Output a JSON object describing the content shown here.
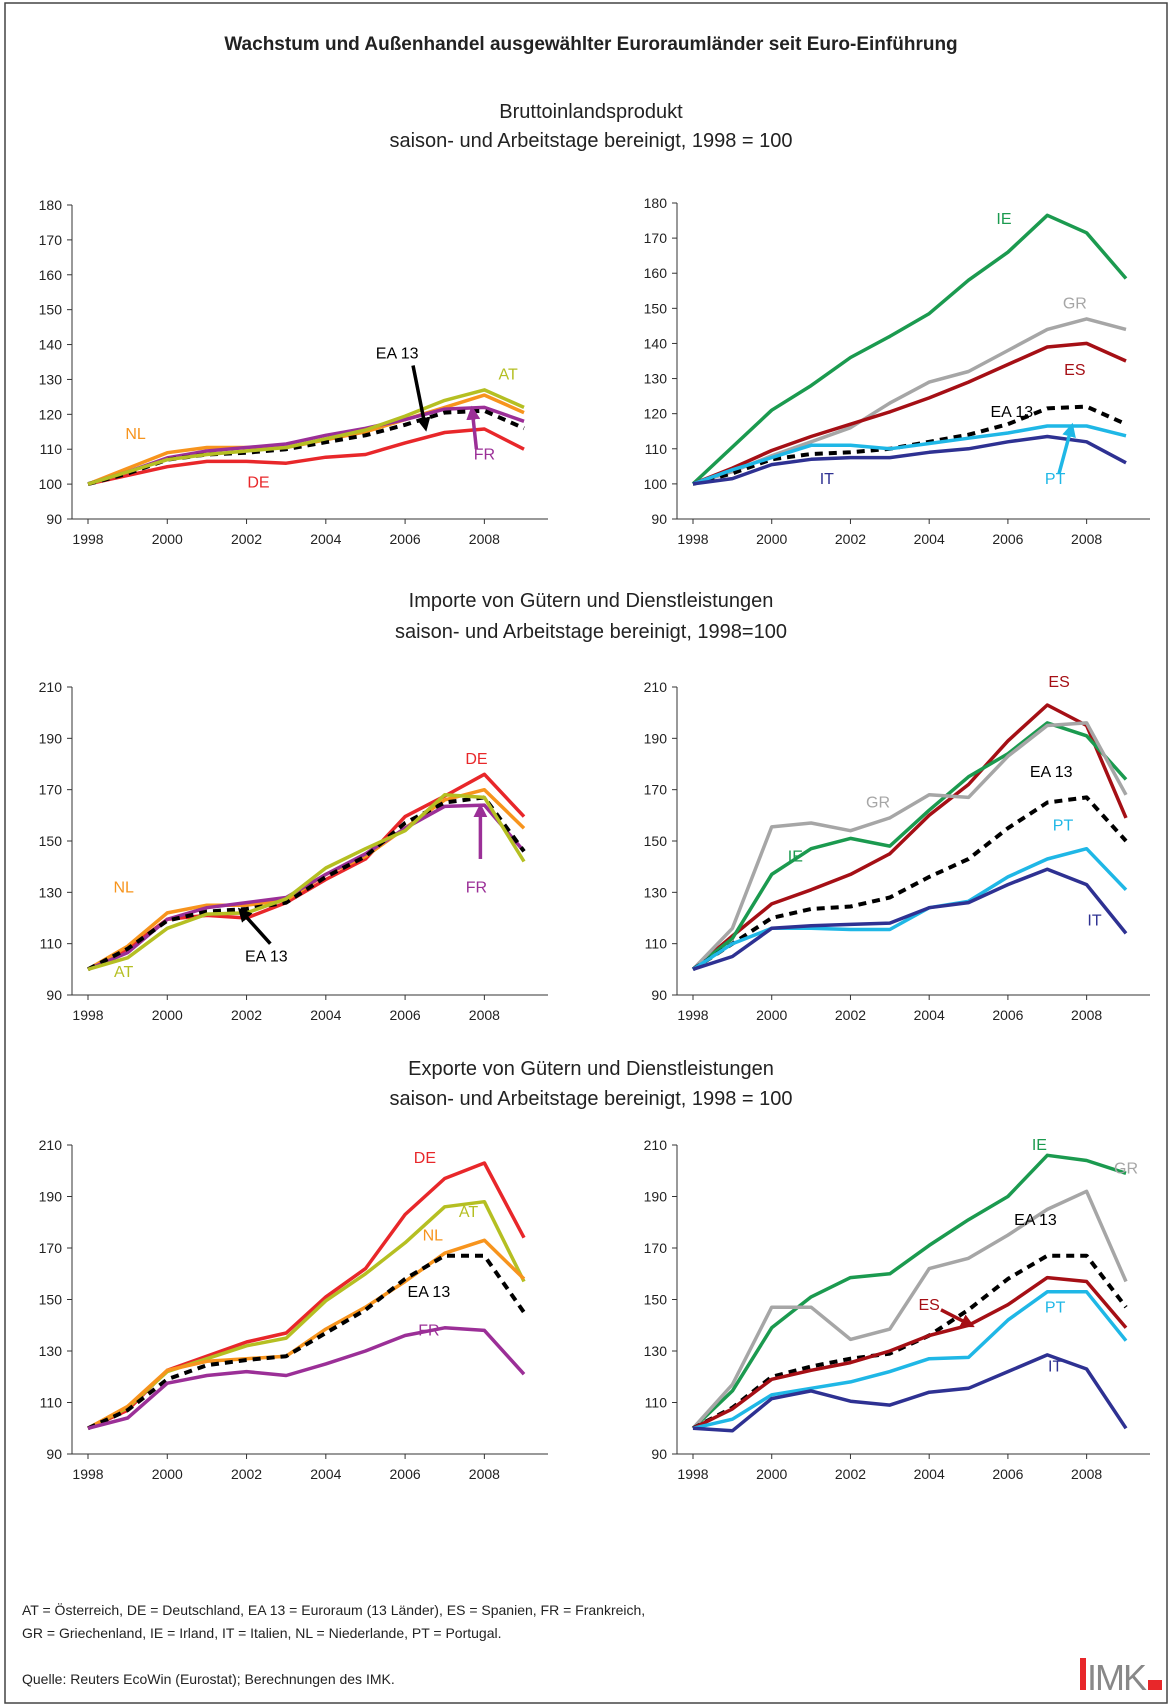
{
  "title": "Wachstum und Außenhandel ausgewählter Euroraumländer seit Euro-Einführung",
  "sections": [
    {
      "title": "Bruttoinlandsprodukt",
      "subtitle": "saison- und Arbeitstage bereinigt, 1998 = 100"
    },
    {
      "title": "Importe von Gütern und Dienstleistungen",
      "subtitle": "saison- und Arbeitstage bereinigt, 1998=100"
    },
    {
      "title": "Exporte von Gütern und Dienstleistungen",
      "subtitle": "saison- und Arbeitstage bereinigt, 1998 = 100"
    }
  ],
  "footnote": [
    "AT = Österreich, DE = Deutschland, EA 13 = Euroraum (13 Länder), ES = Spanien, FR = Frankreich,",
    "GR = Griechenland, IE = Irland, IT = Italien, NL = Niederlande, PT = Portugal."
  ],
  "source": "Quelle: Reuters EcoWin (Eurostat); Berechnungen des IMK.",
  "logo": "IMK",
  "chart_data": [
    {
      "type": "line",
      "x": [
        1998,
        1999,
        2000,
        2001,
        2002,
        2003,
        2004,
        2005,
        2006,
        2007,
        2008,
        2009
      ],
      "xlim": [
        1998,
        2009
      ],
      "xticks": [
        1998,
        2000,
        2002,
        2004,
        2006,
        2008
      ],
      "ylim": [
        90,
        180
      ],
      "yticks": [
        90,
        100,
        110,
        120,
        130,
        140,
        150,
        160,
        170,
        180
      ],
      "series": [
        {
          "name": "DE",
          "color": "#e8272a",
          "values": [
            100,
            102.5,
            105,
            106.5,
            106.5,
            106,
            107.7,
            108.5,
            111.8,
            114.8,
            115.8,
            110
          ]
        },
        {
          "name": "NL",
          "color": "#f7941d",
          "values": [
            100,
            104.5,
            109,
            110.5,
            110.5,
            110.5,
            112.7,
            115,
            118.5,
            122,
            125.5,
            120.5
          ]
        },
        {
          "name": "FR",
          "color": "#9b2f97",
          "values": [
            100,
            103.5,
            107.5,
            109.5,
            110.5,
            111.5,
            114,
            116,
            118.5,
            121.5,
            122,
            118
          ]
        },
        {
          "name": "EA 13",
          "color": "#000000",
          "dash": true,
          "values": [
            100,
            103,
            107,
            108.5,
            109,
            110,
            112,
            114,
            117,
            120.5,
            121,
            116
          ]
        },
        {
          "name": "AT",
          "color": "#b5bf22",
          "values": [
            100,
            103.5,
            107,
            108.5,
            109.5,
            110.5,
            113,
            115.5,
            119.5,
            124,
            127,
            122
          ]
        }
      ]
    },
    {
      "type": "line",
      "x": [
        1998,
        1999,
        2000,
        2001,
        2002,
        2003,
        2004,
        2005,
        2006,
        2007,
        2008,
        2009
      ],
      "xlim": [
        1998,
        2009
      ],
      "xticks": [
        1998,
        2000,
        2002,
        2004,
        2006,
        2008
      ],
      "ylim": [
        90,
        180
      ],
      "yticks": [
        90,
        100,
        110,
        120,
        130,
        140,
        150,
        160,
        170,
        180
      ],
      "series": [
        {
          "name": "IE",
          "color": "#1b9a4f",
          "values": [
            100,
            110.5,
            121,
            128,
            136,
            142,
            148.5,
            158,
            166,
            176.5,
            171.5,
            158.5
          ]
        },
        {
          "name": "GR",
          "color": "#a6a6a6",
          "values": [
            100,
            103.5,
            108,
            112,
            116,
            123,
            129,
            132,
            138,
            144,
            147,
            144
          ]
        },
        {
          "name": "ES",
          "color": "#a50f15",
          "values": [
            100,
            104.5,
            109.5,
            113.5,
            117,
            120.5,
            124.5,
            129,
            134,
            139,
            140,
            135
          ]
        },
        {
          "name": "EA 13",
          "color": "#000000",
          "dash": true,
          "values": [
            100,
            103,
            107,
            108.5,
            109,
            110,
            112,
            114,
            117,
            121.5,
            122,
            117
          ]
        },
        {
          "name": "PT",
          "color": "#1fb7e6",
          "values": [
            100,
            104,
            107.5,
            111,
            111,
            110,
            111.5,
            113,
            114.5,
            116.5,
            116.5,
            113.7
          ]
        },
        {
          "name": "IT",
          "color": "#2e3192",
          "values": [
            100,
            101.5,
            105.5,
            107,
            107.5,
            107.5,
            109,
            110,
            112,
            113.5,
            112,
            106
          ]
        }
      ]
    },
    {
      "type": "line",
      "x": [
        1998,
        1999,
        2000,
        2001,
        2002,
        2003,
        2004,
        2005,
        2006,
        2007,
        2008,
        2009
      ],
      "xlim": [
        1998,
        2009
      ],
      "xticks": [
        1998,
        2000,
        2002,
        2004,
        2006,
        2008
      ],
      "ylim": [
        90,
        210
      ],
      "yticks": [
        90,
        110,
        130,
        150,
        170,
        190,
        210
      ],
      "series": [
        {
          "name": "DE",
          "color": "#e8272a",
          "values": [
            100,
            108,
            119.5,
            121,
            120,
            126,
            135,
            143,
            159.5,
            167.5,
            176,
            159.5
          ]
        },
        {
          "name": "NL",
          "color": "#f7941d",
          "values": [
            100,
            109,
            122,
            125,
            125,
            127,
            137,
            144,
            155,
            166,
            170,
            155
          ]
        },
        {
          "name": "FR",
          "color": "#9b2f97",
          "values": [
            100,
            106.5,
            119.5,
            124,
            126,
            128,
            137,
            145,
            155,
            163.5,
            164,
            146
          ]
        },
        {
          "name": "EA 13",
          "color": "#000000",
          "dash": true,
          "values": [
            100,
            108,
            119,
            122.5,
            123.5,
            126,
            136,
            144,
            157,
            165,
            167,
            146
          ]
        },
        {
          "name": "AT",
          "color": "#b5bf22",
          "values": [
            100,
            104.5,
            116,
            121.5,
            122,
            127.5,
            139.5,
            147,
            154,
            168,
            167,
            142
          ]
        }
      ]
    },
    {
      "type": "line",
      "x": [
        1998,
        1999,
        2000,
        2001,
        2002,
        2003,
        2004,
        2005,
        2006,
        2007,
        2008,
        2009
      ],
      "xlim": [
        1998,
        2009
      ],
      "xticks": [
        1998,
        2000,
        2002,
        2004,
        2006,
        2008
      ],
      "ylim": [
        90,
        210
      ],
      "yticks": [
        90,
        110,
        130,
        150,
        170,
        190,
        210
      ],
      "series": [
        {
          "name": "ES",
          "color": "#a50f15",
          "values": [
            100,
            113,
            125.5,
            131,
            137,
            145,
            160,
            172,
            189,
            203,
            195,
            159
          ]
        },
        {
          "name": "IE",
          "color": "#1b9a4f",
          "values": [
            100,
            112,
            137,
            147,
            151,
            148,
            162,
            175,
            184,
            196,
            191,
            174
          ]
        },
        {
          "name": "GR",
          "color": "#a6a6a6",
          "values": [
            100,
            116,
            155.5,
            157,
            154,
            159,
            168,
            167,
            183,
            195,
            196,
            168
          ]
        },
        {
          "name": "EA 13",
          "color": "#000000",
          "dash": true,
          "values": [
            100,
            110,
            120,
            123.5,
            124.5,
            128,
            136,
            143,
            155,
            165,
            167,
            150
          ]
        },
        {
          "name": "PT",
          "color": "#1fb7e6",
          "values": [
            100,
            110,
            116,
            116,
            115.5,
            115.5,
            124,
            126.5,
            136,
            143,
            147,
            131
          ]
        },
        {
          "name": "IT",
          "color": "#2e3192",
          "values": [
            100,
            105,
            116,
            117,
            117.5,
            118,
            124,
            126,
            133,
            139,
            133,
            114
          ]
        }
      ]
    },
    {
      "type": "line",
      "x": [
        1998,
        1999,
        2000,
        2001,
        2002,
        2003,
        2004,
        2005,
        2006,
        2007,
        2008,
        2009
      ],
      "xlim": [
        1998,
        2009
      ],
      "xticks": [
        1998,
        2000,
        2002,
        2004,
        2006,
        2008
      ],
      "ylim": [
        90,
        210
      ],
      "yticks": [
        90,
        110,
        130,
        150,
        170,
        190,
        210
      ],
      "series": [
        {
          "name": "DE",
          "color": "#e8272a",
          "values": [
            100,
            107,
            122.5,
            128,
            133.5,
            137,
            151,
            162,
            183,
            197,
            203,
            174
          ]
        },
        {
          "name": "AT",
          "color": "#b5bf22",
          "values": [
            100,
            108,
            122,
            127,
            132,
            135,
            149.5,
            160,
            172,
            186,
            188,
            157
          ]
        },
        {
          "name": "NL",
          "color": "#f7941d",
          "values": [
            100,
            108.5,
            122.5,
            126,
            127,
            128,
            138.5,
            147,
            157,
            168,
            173,
            158
          ]
        },
        {
          "name": "EA 13",
          "color": "#000000",
          "dash": true,
          "values": [
            100,
            107,
            119,
            124.5,
            126.5,
            128,
            137,
            146,
            158,
            167,
            167,
            145
          ]
        },
        {
          "name": "FR",
          "color": "#9b2f97",
          "values": [
            100,
            104,
            117.5,
            120.5,
            122,
            120.5,
            125,
            130,
            136,
            139,
            138,
            121
          ]
        }
      ]
    },
    {
      "type": "line",
      "x": [
        1998,
        1999,
        2000,
        2001,
        2002,
        2003,
        2004,
        2005,
        2006,
        2007,
        2008,
        2009
      ],
      "xlim": [
        1998,
        2009
      ],
      "xticks": [
        1998,
        2000,
        2002,
        2004,
        2006,
        2008
      ],
      "ylim": [
        90,
        210
      ],
      "yticks": [
        90,
        110,
        130,
        150,
        170,
        190,
        210
      ],
      "series": [
        {
          "name": "IE",
          "color": "#1b9a4f",
          "values": [
            100,
            114.5,
            139,
            151,
            158.5,
            160,
            171,
            181,
            190,
            206,
            204,
            199
          ]
        },
        {
          "name": "GR",
          "color": "#a6a6a6",
          "values": [
            100,
            117,
            147,
            147,
            134.5,
            138.5,
            162,
            166,
            175,
            185,
            192,
            157
          ]
        },
        {
          "name": "EA 13",
          "color": "#000000",
          "dash": true,
          "values": [
            100,
            108,
            120,
            124,
            127,
            129,
            136,
            146,
            158,
            167,
            167,
            147
          ]
        },
        {
          "name": "ES",
          "color": "#a50f15",
          "values": [
            100,
            107.5,
            119,
            122.5,
            125.5,
            130,
            136,
            140,
            148,
            158.5,
            157,
            139
          ]
        },
        {
          "name": "PT",
          "color": "#1fb7e6",
          "values": [
            100,
            103.5,
            113,
            115.5,
            118,
            122,
            127,
            127.5,
            142,
            153,
            153,
            134
          ]
        },
        {
          "name": "IT",
          "color": "#2e3192",
          "values": [
            100,
            99,
            111.5,
            114.5,
            110.5,
            109,
            114,
            115.5,
            122,
            128.5,
            123,
            100
          ]
        }
      ]
    }
  ]
}
